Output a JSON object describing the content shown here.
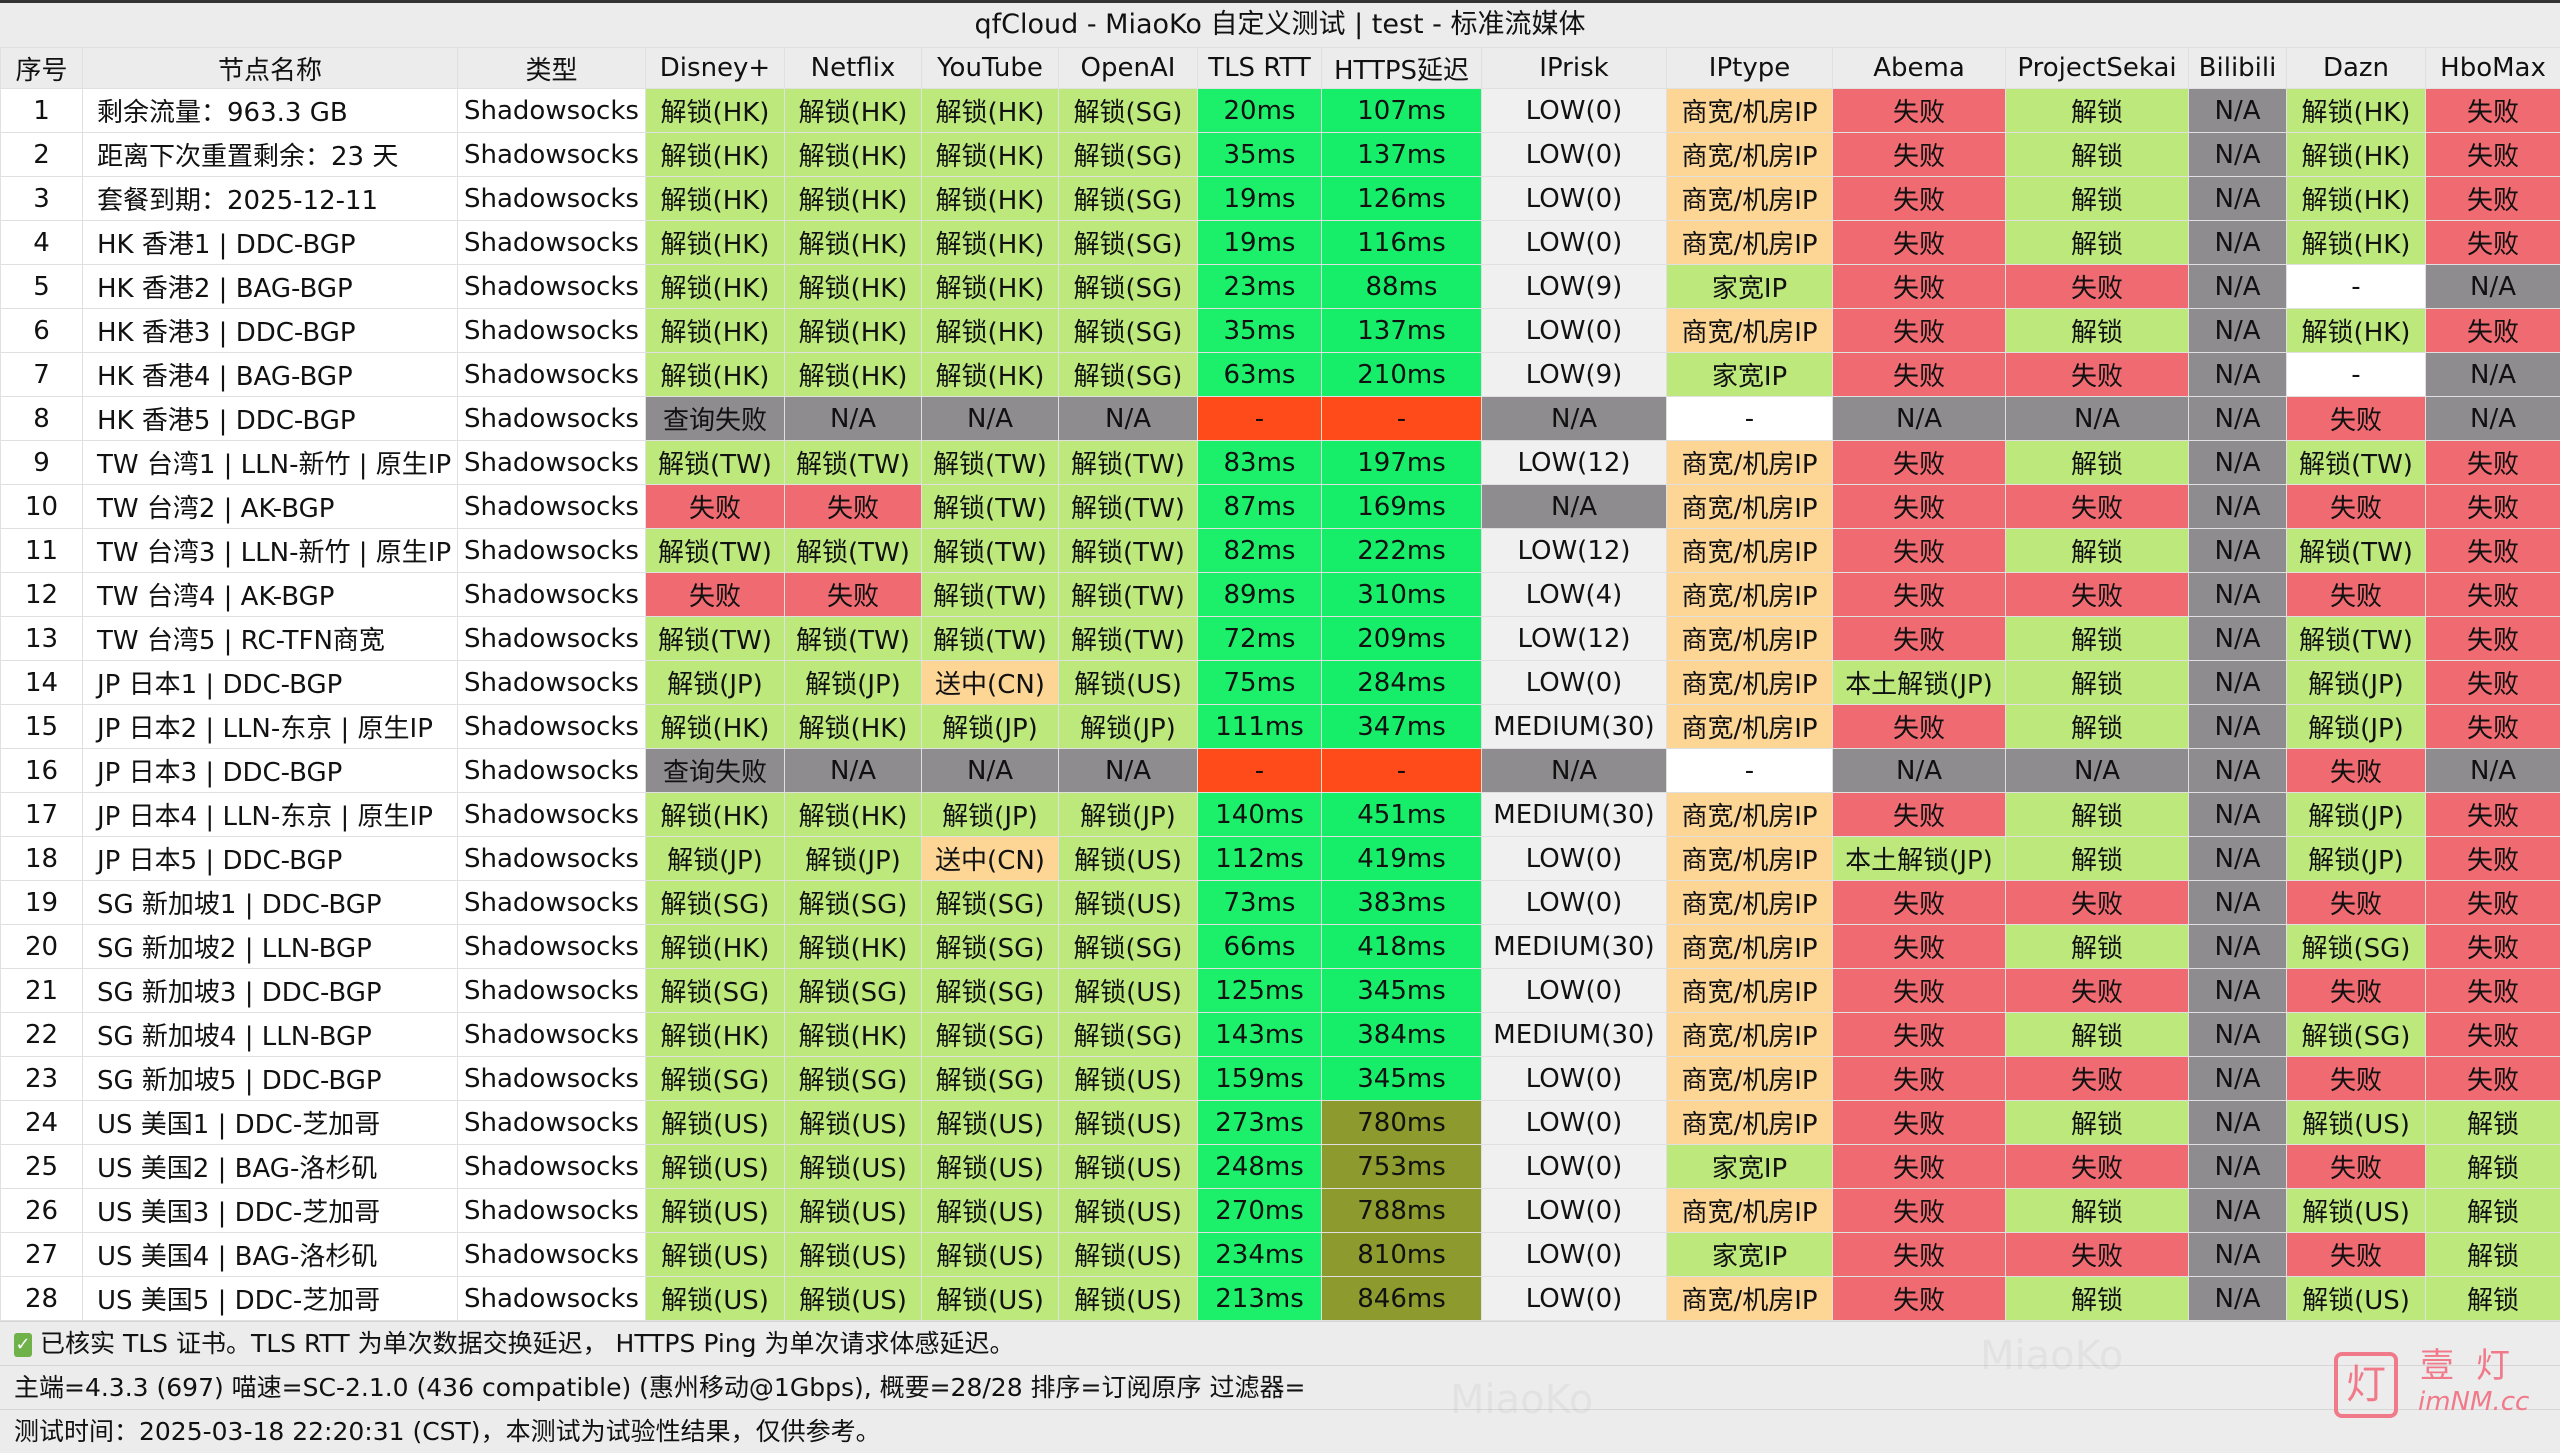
{
  "window": {
    "title": "qfCloud - MiaoKo 自定义测试 | test - 标准流媒体"
  },
  "colors": {
    "unlock": "#bde87c",
    "fail": "#f06a72",
    "na": "#8e8c8e",
    "tls": "#1cf06a",
    "https_ok": "#16ee6a",
    "https_slow": "#8c9a2e",
    "error": "#ff4a1a",
    "business_ip": "#fdd595",
    "home_ip": "#bde87c",
    "risk": "#f0f0f0",
    "blank": "#ffffff"
  },
  "table": {
    "columns": [
      "序号",
      "节点名称",
      "类型",
      "Disney+",
      "Netflix",
      "YouTube",
      "OpenAI",
      "TLS RTT",
      "HTTPS延迟",
      "IPrisk",
      "IPtype",
      "Abema",
      "ProjectSekai",
      "Bilibili",
      "Dazn",
      "HboMax"
    ],
    "rows": [
      [
        "1",
        "剩余流量：963.3 GB",
        "Shadowsocks",
        "解锁(HK)",
        "解锁(HK)",
        "解锁(HK)",
        "解锁(SG)",
        "20ms",
        "107ms",
        "LOW(0)",
        "商宽/机房IP",
        "失败",
        "解锁",
        "N/A",
        "解锁(HK)",
        "失败"
      ],
      [
        "2",
        "距离下次重置剩余：23 天",
        "Shadowsocks",
        "解锁(HK)",
        "解锁(HK)",
        "解锁(HK)",
        "解锁(SG)",
        "35ms",
        "137ms",
        "LOW(0)",
        "商宽/机房IP",
        "失败",
        "解锁",
        "N/A",
        "解锁(HK)",
        "失败"
      ],
      [
        "3",
        "套餐到期：2025-12-11",
        "Shadowsocks",
        "解锁(HK)",
        "解锁(HK)",
        "解锁(HK)",
        "解锁(SG)",
        "19ms",
        "126ms",
        "LOW(0)",
        "商宽/机房IP",
        "失败",
        "解锁",
        "N/A",
        "解锁(HK)",
        "失败"
      ],
      [
        "4",
        "HK 香港1 | DDC-BGP",
        "Shadowsocks",
        "解锁(HK)",
        "解锁(HK)",
        "解锁(HK)",
        "解锁(SG)",
        "19ms",
        "116ms",
        "LOW(0)",
        "商宽/机房IP",
        "失败",
        "解锁",
        "N/A",
        "解锁(HK)",
        "失败"
      ],
      [
        "5",
        "HK 香港2 | BAG-BGP",
        "Shadowsocks",
        "解锁(HK)",
        "解锁(HK)",
        "解锁(HK)",
        "解锁(SG)",
        "23ms",
        "88ms",
        "LOW(9)",
        "家宽IP",
        "失败",
        "失败",
        "N/A",
        "-",
        "N/A"
      ],
      [
        "6",
        "HK 香港3 | DDC-BGP",
        "Shadowsocks",
        "解锁(HK)",
        "解锁(HK)",
        "解锁(HK)",
        "解锁(SG)",
        "35ms",
        "137ms",
        "LOW(0)",
        "商宽/机房IP",
        "失败",
        "解锁",
        "N/A",
        "解锁(HK)",
        "失败"
      ],
      [
        "7",
        "HK 香港4 | BAG-BGP",
        "Shadowsocks",
        "解锁(HK)",
        "解锁(HK)",
        "解锁(HK)",
        "解锁(SG)",
        "63ms",
        "210ms",
        "LOW(9)",
        "家宽IP",
        "失败",
        "失败",
        "N/A",
        "-",
        "N/A"
      ],
      [
        "8",
        "HK 香港5 | DDC-BGP",
        "Shadowsocks",
        "查询失败",
        "N/A",
        "N/A",
        "N/A",
        "-",
        "-",
        "N/A",
        "-",
        "N/A",
        "N/A",
        "N/A",
        "失败",
        "N/A"
      ],
      [
        "9",
        "TW 台湾1 | LLN-新竹 | 原生IP",
        "Shadowsocks",
        "解锁(TW)",
        "解锁(TW)",
        "解锁(TW)",
        "解锁(TW)",
        "83ms",
        "197ms",
        "LOW(12)",
        "商宽/机房IP",
        "失败",
        "解锁",
        "N/A",
        "解锁(TW)",
        "失败"
      ],
      [
        "10",
        "TW 台湾2 | AK-BGP",
        "Shadowsocks",
        "失败",
        "失败",
        "解锁(TW)",
        "解锁(TW)",
        "87ms",
        "169ms",
        "N/A",
        "商宽/机房IP",
        "失败",
        "失败",
        "N/A",
        "失败",
        "失败"
      ],
      [
        "11",
        "TW 台湾3 | LLN-新竹 | 原生IP",
        "Shadowsocks",
        "解锁(TW)",
        "解锁(TW)",
        "解锁(TW)",
        "解锁(TW)",
        "82ms",
        "222ms",
        "LOW(12)",
        "商宽/机房IP",
        "失败",
        "解锁",
        "N/A",
        "解锁(TW)",
        "失败"
      ],
      [
        "12",
        "TW 台湾4 | AK-BGP",
        "Shadowsocks",
        "失败",
        "失败",
        "解锁(TW)",
        "解锁(TW)",
        "89ms",
        "310ms",
        "LOW(4)",
        "商宽/机房IP",
        "失败",
        "失败",
        "N/A",
        "失败",
        "失败"
      ],
      [
        "13",
        "TW 台湾5 | RC-TFN商宽",
        "Shadowsocks",
        "解锁(TW)",
        "解锁(TW)",
        "解锁(TW)",
        "解锁(TW)",
        "72ms",
        "209ms",
        "LOW(12)",
        "商宽/机房IP",
        "失败",
        "解锁",
        "N/A",
        "解锁(TW)",
        "失败"
      ],
      [
        "14",
        "JP 日本1 | DDC-BGP",
        "Shadowsocks",
        "解锁(JP)",
        "解锁(JP)",
        "送中(CN)",
        "解锁(US)",
        "75ms",
        "284ms",
        "LOW(0)",
        "商宽/机房IP",
        "本土解锁(JP)",
        "解锁",
        "N/A",
        "解锁(JP)",
        "失败"
      ],
      [
        "15",
        "JP 日本2 | LLN-东京 | 原生IP",
        "Shadowsocks",
        "解锁(HK)",
        "解锁(HK)",
        "解锁(JP)",
        "解锁(JP)",
        "111ms",
        "347ms",
        "MEDIUM(30)",
        "商宽/机房IP",
        "失败",
        "解锁",
        "N/A",
        "解锁(JP)",
        "失败"
      ],
      [
        "16",
        "JP 日本3 | DDC-BGP",
        "Shadowsocks",
        "查询失败",
        "N/A",
        "N/A",
        "N/A",
        "-",
        "-",
        "N/A",
        "-",
        "N/A",
        "N/A",
        "N/A",
        "失败",
        "N/A"
      ],
      [
        "17",
        "JP 日本4 | LLN-东京 | 原生IP",
        "Shadowsocks",
        "解锁(HK)",
        "解锁(HK)",
        "解锁(JP)",
        "解锁(JP)",
        "140ms",
        "451ms",
        "MEDIUM(30)",
        "商宽/机房IP",
        "失败",
        "解锁",
        "N/A",
        "解锁(JP)",
        "失败"
      ],
      [
        "18",
        "JP 日本5 | DDC-BGP",
        "Shadowsocks",
        "解锁(JP)",
        "解锁(JP)",
        "送中(CN)",
        "解锁(US)",
        "112ms",
        "419ms",
        "LOW(0)",
        "商宽/机房IP",
        "本土解锁(JP)",
        "解锁",
        "N/A",
        "解锁(JP)",
        "失败"
      ],
      [
        "19",
        "SG 新加坡1 | DDC-BGP",
        "Shadowsocks",
        "解锁(SG)",
        "解锁(SG)",
        "解锁(SG)",
        "解锁(US)",
        "73ms",
        "383ms",
        "LOW(0)",
        "商宽/机房IP",
        "失败",
        "失败",
        "N/A",
        "失败",
        "失败"
      ],
      [
        "20",
        "SG 新加坡2 | LLN-BGP",
        "Shadowsocks",
        "解锁(HK)",
        "解锁(HK)",
        "解锁(SG)",
        "解锁(SG)",
        "66ms",
        "418ms",
        "MEDIUM(30)",
        "商宽/机房IP",
        "失败",
        "解锁",
        "N/A",
        "解锁(SG)",
        "失败"
      ],
      [
        "21",
        "SG 新加坡3 | DDC-BGP",
        "Shadowsocks",
        "解锁(SG)",
        "解锁(SG)",
        "解锁(SG)",
        "解锁(US)",
        "125ms",
        "345ms",
        "LOW(0)",
        "商宽/机房IP",
        "失败",
        "失败",
        "N/A",
        "失败",
        "失败"
      ],
      [
        "22",
        "SG 新加坡4 | LLN-BGP",
        "Shadowsocks",
        "解锁(HK)",
        "解锁(HK)",
        "解锁(SG)",
        "解锁(SG)",
        "143ms",
        "384ms",
        "MEDIUM(30)",
        "商宽/机房IP",
        "失败",
        "解锁",
        "N/A",
        "解锁(SG)",
        "失败"
      ],
      [
        "23",
        "SG 新加坡5 | DDC-BGP",
        "Shadowsocks",
        "解锁(SG)",
        "解锁(SG)",
        "解锁(SG)",
        "解锁(US)",
        "159ms",
        "345ms",
        "LOW(0)",
        "商宽/机房IP",
        "失败",
        "失败",
        "N/A",
        "失败",
        "失败"
      ],
      [
        "24",
        "US 美国1 | DDC-芝加哥",
        "Shadowsocks",
        "解锁(US)",
        "解锁(US)",
        "解锁(US)",
        "解锁(US)",
        "273ms",
        "780ms",
        "LOW(0)",
        "商宽/机房IP",
        "失败",
        "解锁",
        "N/A",
        "解锁(US)",
        "解锁"
      ],
      [
        "25",
        "US 美国2 | BAG-洛杉矶",
        "Shadowsocks",
        "解锁(US)",
        "解锁(US)",
        "解锁(US)",
        "解锁(US)",
        "248ms",
        "753ms",
        "LOW(0)",
        "家宽IP",
        "失败",
        "失败",
        "N/A",
        "失败",
        "解锁"
      ],
      [
        "26",
        "US 美国3 | DDC-芝加哥",
        "Shadowsocks",
        "解锁(US)",
        "解锁(US)",
        "解锁(US)",
        "解锁(US)",
        "270ms",
        "788ms",
        "LOW(0)",
        "商宽/机房IP",
        "失败",
        "解锁",
        "N/A",
        "解锁(US)",
        "解锁"
      ],
      [
        "27",
        "US 美国4 | BAG-洛杉矶",
        "Shadowsocks",
        "解锁(US)",
        "解锁(US)",
        "解锁(US)",
        "解锁(US)",
        "234ms",
        "810ms",
        "LOW(0)",
        "家宽IP",
        "失败",
        "失败",
        "N/A",
        "失败",
        "解锁"
      ],
      [
        "28",
        "US 美国5 | DDC-芝加哥",
        "Shadowsocks",
        "解锁(US)",
        "解锁(US)",
        "解锁(US)",
        "解锁(US)",
        "213ms",
        "846ms",
        "LOW(0)",
        "商宽/机房IP",
        "失败",
        "解锁",
        "N/A",
        "解锁(US)",
        "解锁"
      ]
    ]
  },
  "footer": {
    "note": "已核实 TLS 证书。TLS RTT 为单次数据交换延迟， HTTPS Ping 为单次请求体感延迟。",
    "info": "主端=4.3.3 (697) 喵速=SC-2.1.0 (436 compatible) (惠州移动@1Gbps), 概要=28/28 排序=订阅原序 过滤器=",
    "time": "测试时间：2025-03-18 22:20:31 (CST)，本测试为试验性结果，仅供参考。"
  },
  "watermark": "MiaoKo",
  "logo": {
    "glyph": "灯",
    "cn": "壹灯",
    "en": "imNM.cc"
  }
}
